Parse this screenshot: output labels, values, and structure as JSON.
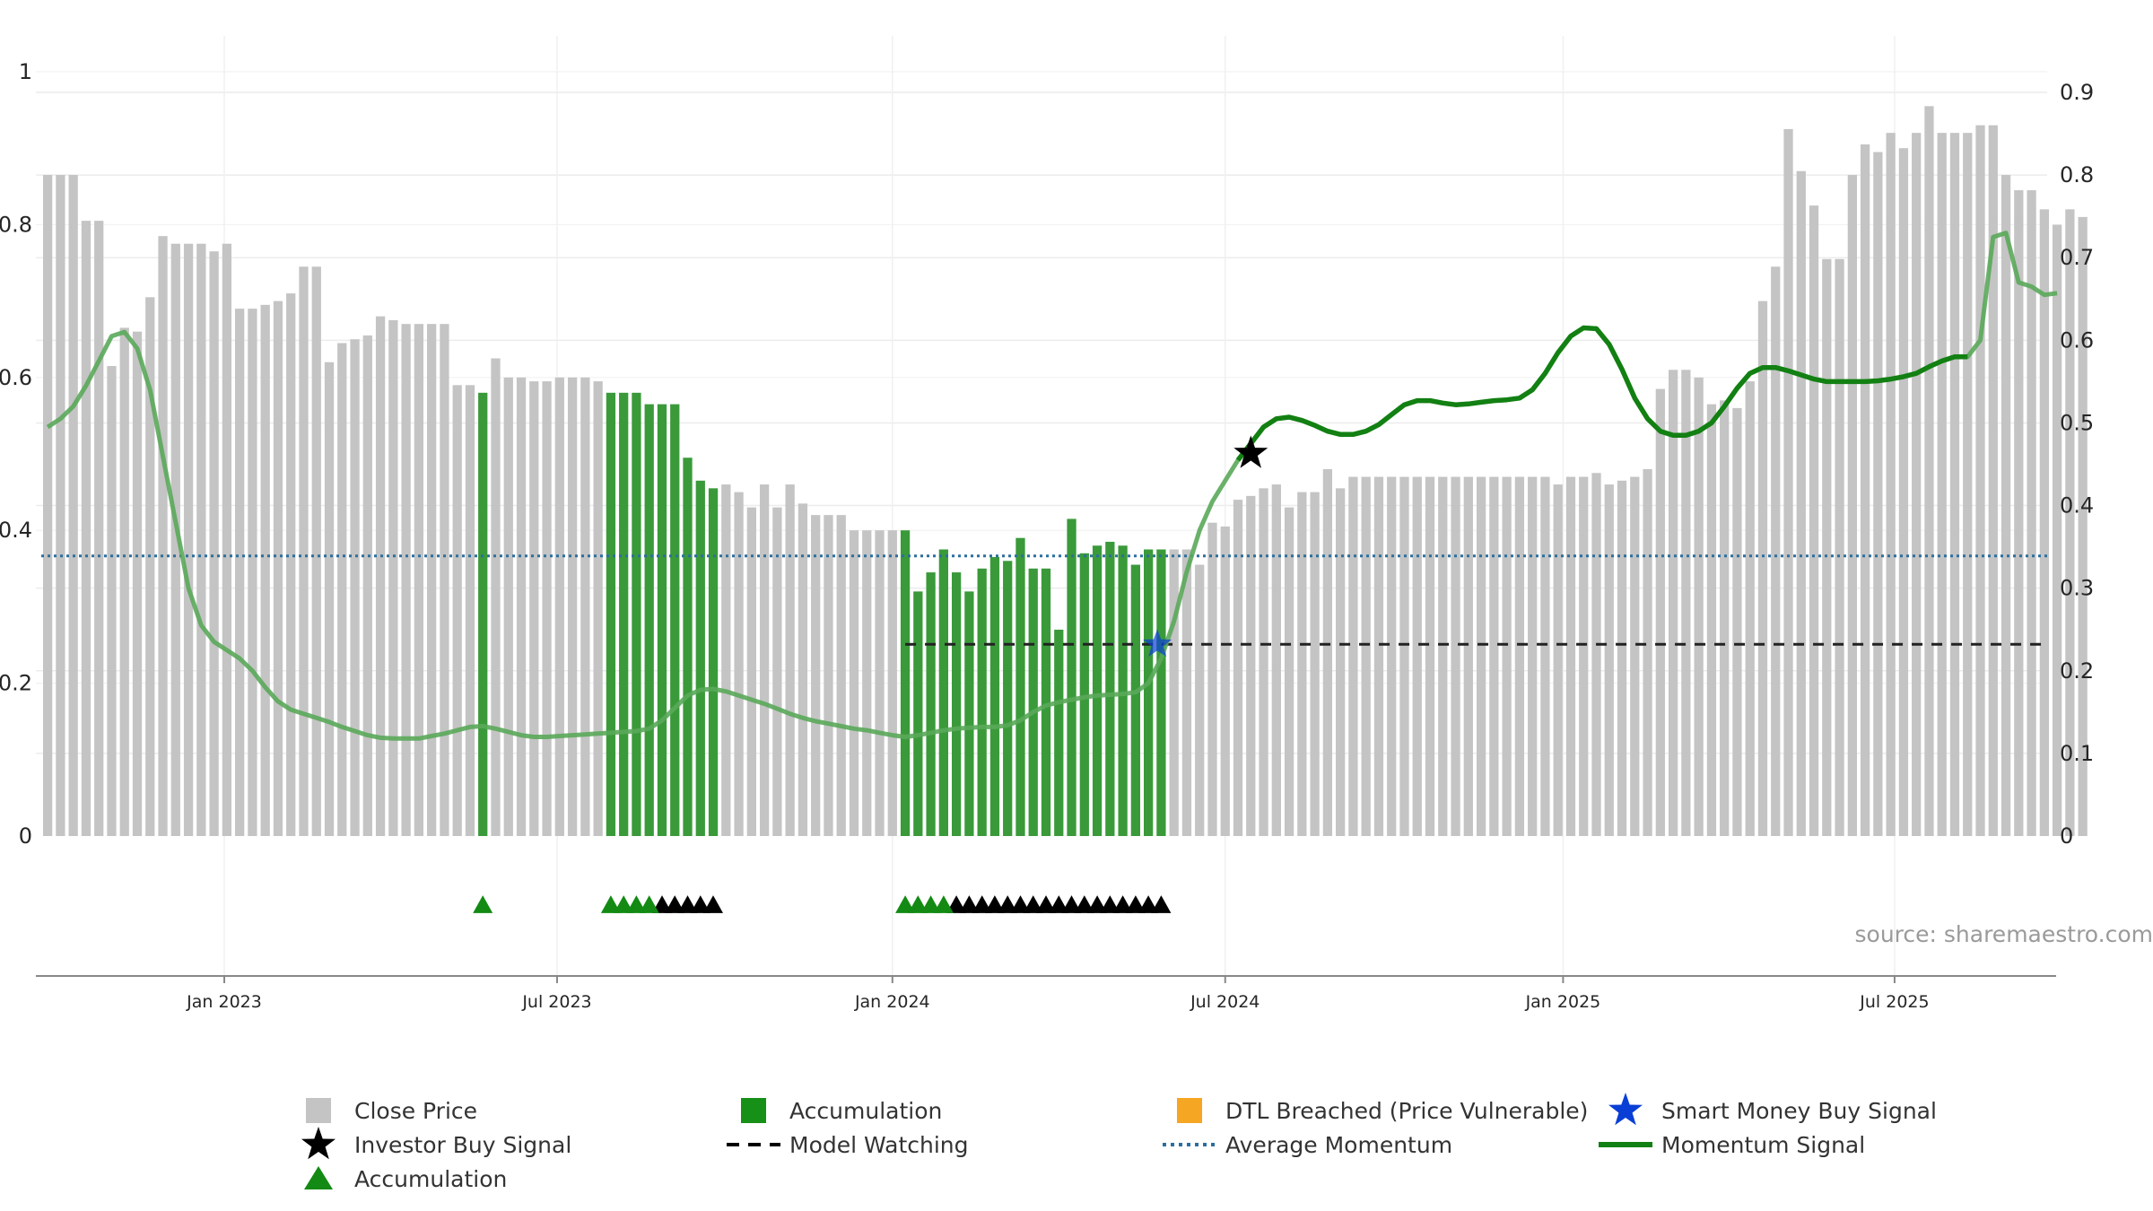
{
  "chart_data": {
    "type": "bar",
    "source": "source: sharemaestro.com",
    "colors": {
      "close": "#c4c4c4",
      "accumulation": "#3a9a3a",
      "momentum": "#1e8a1e",
      "avg_momentum": "#2b6f9e",
      "model_watching": "#222222",
      "investor_star": "#000000",
      "smart_star": "#0a3fd6",
      "dtl": "#f5a623"
    },
    "y_left": {
      "min": 0,
      "max": 1.05,
      "ticks": [
        0,
        0.2,
        0.4,
        0.6,
        0.8,
        1
      ],
      "labels": [
        "0",
        "0.2",
        "0.4",
        "0.6",
        "0.8",
        "1"
      ]
    },
    "y_right": {
      "min": 0,
      "max": 0.9,
      "ticks": [
        0,
        0.1,
        0.2,
        0.3,
        0.4,
        0.5,
        0.6,
        0.7,
        0.8,
        0.9
      ],
      "labels": [
        "0",
        "0.1",
        "0.2",
        "0.3",
        "0.4",
        "0.5",
        "0.6",
        "0.7",
        "0.8",
        "0.9"
      ]
    },
    "x_ticks": [
      {
        "t": 14.3,
        "label": "Jan 2023"
      },
      {
        "t": 40.3,
        "label": "Jul 2023"
      },
      {
        "t": 66.5,
        "label": "Jan 2024"
      },
      {
        "t": 92.5,
        "label": "Jul 2024"
      },
      {
        "t": 118.9,
        "label": "Jan 2025"
      },
      {
        "t": 144.8,
        "label": "Jul 2025"
      }
    ],
    "x_range": [
      0,
      157
    ],
    "close_prices": [
      0.865,
      0.865,
      0.865,
      0.805,
      0.805,
      0.615,
      0.665,
      0.66,
      0.705,
      0.785,
      0.775,
      0.775,
      0.775,
      0.765,
      0.775,
      0.69,
      0.69,
      0.695,
      0.7,
      0.71,
      0.745,
      0.745,
      0.62,
      0.645,
      0.65,
      0.655,
      0.68,
      0.675,
      0.67,
      0.67,
      0.67,
      0.67,
      0.59,
      0.59,
      0.58,
      0.625,
      0.6,
      0.6,
      0.595,
      0.595,
      0.6,
      0.6,
      0.6,
      0.595,
      0.58,
      0.58,
      0.58,
      0.565,
      0.565,
      0.565,
      0.495,
      0.465,
      0.455,
      0.46,
      0.45,
      0.43,
      0.46,
      0.43,
      0.46,
      0.435,
      0.42,
      0.42,
      0.42,
      0.4,
      0.4,
      0.4,
      0.4,
      0.4,
      0.32,
      0.345,
      0.375,
      0.345,
      0.32,
      0.35,
      0.365,
      0.36,
      0.39,
      0.35,
      0.35,
      0.27,
      0.415,
      0.37,
      0.38,
      0.385,
      0.38,
      0.355,
      0.375,
      0.375,
      0.375,
      0.375,
      0.355,
      0.41,
      0.405,
      0.44,
      0.445,
      0.455,
      0.46,
      0.43,
      0.45,
      0.45,
      0.48,
      0.455,
      0.47,
      0.47,
      0.47,
      0.47,
      0.47,
      0.47,
      0.47,
      0.47,
      0.47,
      0.47,
      0.47,
      0.47,
      0.47,
      0.47,
      0.47,
      0.47,
      0.46,
      0.47,
      0.47,
      0.475,
      0.46,
      0.465,
      0.47,
      0.48,
      0.585,
      0.61,
      0.61,
      0.6,
      0.565,
      0.57,
      0.56,
      0.595,
      0.7,
      0.745,
      0.925,
      0.87,
      0.825,
      0.755,
      0.755,
      0.865,
      0.905,
      0.895,
      0.92,
      0.9,
      0.92,
      0.955,
      0.92,
      0.92,
      0.92,
      0.93,
      0.93,
      0.865,
      0.845,
      0.845,
      0.82,
      0.8,
      0.82,
      0.81
    ],
    "accumulation_bars": [
      34,
      44,
      45,
      46,
      47,
      48,
      49,
      50,
      51,
      52,
      67,
      68,
      69,
      70,
      71,
      72,
      73,
      74,
      75,
      76,
      77,
      78,
      79,
      80,
      81,
      82,
      83,
      84,
      85,
      86,
      87
    ],
    "momentum_signal": [
      [
        0,
        0.495
      ],
      [
        1,
        0.505
      ],
      [
        2,
        0.52
      ],
      [
        3,
        0.545
      ],
      [
        4,
        0.575
      ],
      [
        5,
        0.605
      ],
      [
        6,
        0.61
      ],
      [
        7,
        0.59
      ],
      [
        8,
        0.54
      ],
      [
        9,
        0.46
      ],
      [
        10,
        0.38
      ],
      [
        11,
        0.3
      ],
      [
        12,
        0.255
      ],
      [
        13,
        0.235
      ],
      [
        14,
        0.225
      ],
      [
        15,
        0.215
      ],
      [
        16,
        0.2
      ],
      [
        17,
        0.18
      ],
      [
        18,
        0.163
      ],
      [
        19,
        0.153
      ],
      [
        20,
        0.148
      ],
      [
        21,
        0.143
      ],
      [
        22,
        0.138
      ],
      [
        23,
        0.132
      ],
      [
        24,
        0.127
      ],
      [
        25,
        0.122
      ],
      [
        26,
        0.119
      ],
      [
        27,
        0.118
      ],
      [
        28,
        0.118
      ],
      [
        29,
        0.118
      ],
      [
        30,
        0.121
      ],
      [
        31,
        0.124
      ],
      [
        32,
        0.128
      ],
      [
        33,
        0.132
      ],
      [
        34,
        0.133
      ],
      [
        35,
        0.13
      ],
      [
        36,
        0.126
      ],
      [
        37,
        0.122
      ],
      [
        38,
        0.12
      ],
      [
        39,
        0.12
      ],
      [
        40,
        0.121
      ],
      [
        41,
        0.122
      ],
      [
        42,
        0.123
      ],
      [
        43,
        0.124
      ],
      [
        44,
        0.125
      ],
      [
        45,
        0.126
      ],
      [
        46,
        0.127
      ],
      [
        47,
        0.13
      ],
      [
        48,
        0.14
      ],
      [
        49,
        0.155
      ],
      [
        50,
        0.17
      ],
      [
        51,
        0.177
      ],
      [
        52,
        0.178
      ],
      [
        53,
        0.175
      ],
      [
        54,
        0.17
      ],
      [
        55,
        0.165
      ],
      [
        56,
        0.16
      ],
      [
        57,
        0.154
      ],
      [
        58,
        0.148
      ],
      [
        59,
        0.143
      ],
      [
        60,
        0.139
      ],
      [
        61,
        0.136
      ],
      [
        62,
        0.133
      ],
      [
        63,
        0.13
      ],
      [
        64,
        0.128
      ],
      [
        65,
        0.125
      ],
      [
        66,
        0.122
      ],
      [
        67,
        0.12
      ],
      [
        68,
        0.122
      ],
      [
        69,
        0.125
      ],
      [
        70,
        0.128
      ],
      [
        71,
        0.13
      ],
      [
        72,
        0.131
      ],
      [
        73,
        0.132
      ],
      [
        74,
        0.132
      ],
      [
        75,
        0.134
      ],
      [
        76,
        0.14
      ],
      [
        77,
        0.15
      ],
      [
        78,
        0.158
      ],
      [
        79,
        0.162
      ],
      [
        80,
        0.165
      ],
      [
        81,
        0.168
      ],
      [
        82,
        0.17
      ],
      [
        83,
        0.171
      ],
      [
        84,
        0.172
      ],
      [
        85,
        0.174
      ],
      [
        86,
        0.185
      ],
      [
        87,
        0.215
      ],
      [
        88,
        0.26
      ],
      [
        89,
        0.32
      ],
      [
        90,
        0.37
      ],
      [
        91,
        0.405
      ],
      [
        92,
        0.43
      ],
      [
        93,
        0.455
      ],
      [
        94,
        0.475
      ],
      [
        95,
        0.495
      ],
      [
        96,
        0.505
      ],
      [
        97,
        0.507
      ],
      [
        98,
        0.503
      ],
      [
        99,
        0.497
      ],
      [
        100,
        0.49
      ],
      [
        101,
        0.486
      ],
      [
        102,
        0.486
      ],
      [
        103,
        0.49
      ],
      [
        104,
        0.498
      ],
      [
        105,
        0.51
      ],
      [
        106,
        0.522
      ],
      [
        107,
        0.527
      ],
      [
        108,
        0.527
      ],
      [
        109,
        0.524
      ],
      [
        110,
        0.522
      ],
      [
        111,
        0.523
      ],
      [
        112,
        0.525
      ],
      [
        113,
        0.527
      ],
      [
        114,
        0.528
      ],
      [
        115,
        0.53
      ],
      [
        116,
        0.54
      ],
      [
        117,
        0.56
      ],
      [
        118,
        0.585
      ],
      [
        119,
        0.605
      ],
      [
        120,
        0.615
      ],
      [
        121,
        0.614
      ],
      [
        122,
        0.595
      ],
      [
        123,
        0.565
      ],
      [
        124,
        0.53
      ],
      [
        125,
        0.505
      ],
      [
        126,
        0.49
      ],
      [
        127,
        0.485
      ],
      [
        128,
        0.485
      ],
      [
        129,
        0.49
      ],
      [
        130,
        0.5
      ],
      [
        131,
        0.52
      ],
      [
        132,
        0.542
      ],
      [
        133,
        0.56
      ],
      [
        134,
        0.567
      ],
      [
        135,
        0.567
      ],
      [
        136,
        0.563
      ],
      [
        137,
        0.558
      ],
      [
        138,
        0.553
      ],
      [
        139,
        0.55
      ],
      [
        140,
        0.55
      ],
      [
        141,
        0.55
      ],
      [
        142,
        0.55
      ],
      [
        143,
        0.551
      ],
      [
        144,
        0.553
      ],
      [
        145,
        0.556
      ],
      [
        146,
        0.56
      ],
      [
        147,
        0.568
      ],
      [
        148,
        0.575
      ],
      [
        149,
        0.58
      ],
      [
        150,
        0.58
      ],
      [
        151,
        0.6
      ],
      [
        152,
        0.725
      ],
      [
        153,
        0.73
      ],
      [
        154,
        0.67
      ],
      [
        155,
        0.665
      ],
      [
        156,
        0.655
      ],
      [
        157,
        0.657
      ]
    ],
    "momentum_dark_range": [
      93,
      150
    ],
    "average_momentum": 0.339,
    "model_watching": {
      "y": 0.232,
      "x_start": 67,
      "x_end": 156
    },
    "investor_buy_signal": {
      "x": 94.5,
      "y": 0.463
    },
    "smart_money_buy_signal": {
      "x": 87.2,
      "y": 0.232
    },
    "accumulation_triangles": [
      34,
      44,
      45,
      46,
      47,
      67,
      68,
      69,
      70
    ],
    "black_triangles": [
      48,
      49,
      50,
      51,
      52,
      71,
      72,
      73,
      74,
      75,
      76,
      77,
      78,
      79,
      80,
      81,
      82,
      83,
      84,
      85,
      86,
      87
    ],
    "legend": [
      {
        "label": "Close Price",
        "kind": "gray-square"
      },
      {
        "label": "Accumulation",
        "kind": "green-square"
      },
      {
        "label": "DTL Breached (Price Vulnerable)",
        "kind": "orange-square"
      },
      {
        "label": "Smart Money Buy Signal",
        "kind": "blue-star"
      },
      {
        "label": "Investor Buy Signal",
        "kind": "black-star"
      },
      {
        "label": "Model Watching",
        "kind": "dashed-black"
      },
      {
        "label": "Average Momentum",
        "kind": "dotted-blue"
      },
      {
        "label": "Momentum Signal",
        "kind": "green-line"
      },
      {
        "label": "Accumulation",
        "kind": "green-triangle"
      }
    ]
  }
}
